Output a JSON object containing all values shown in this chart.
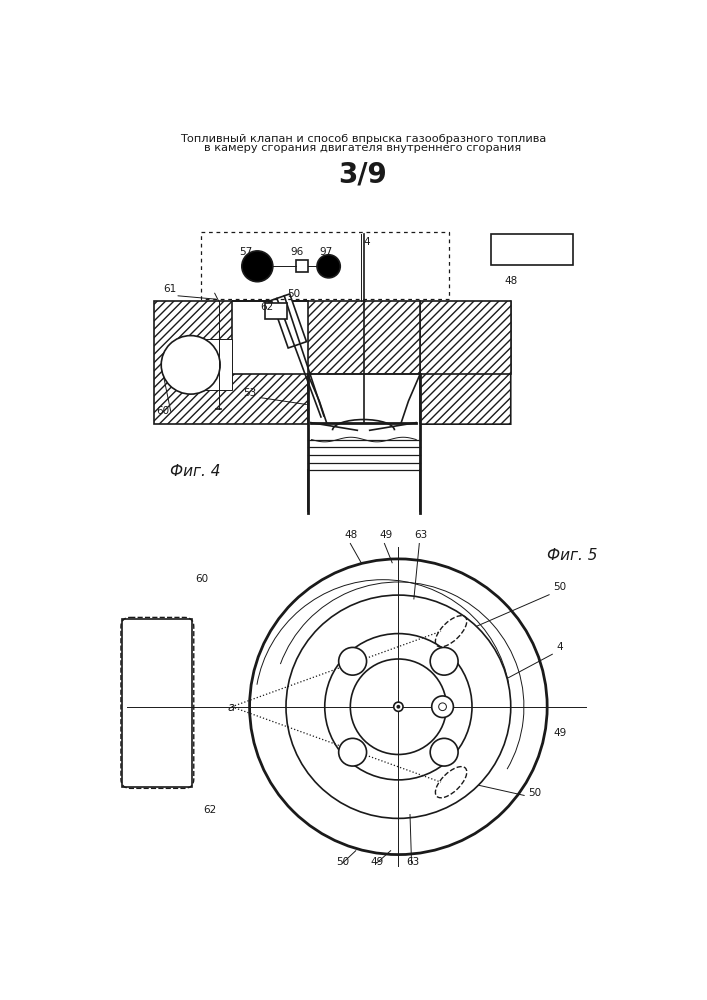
{
  "title_line1": "Топливный клапан и способ впрыска газообразного топлива",
  "title_line2": "в камеру сгорания двигателя внутреннего сгорания",
  "page_label": "3/9",
  "fig4_label": "Фиг. 4",
  "fig5_label": "Фиг. 5",
  "bg_color": "#ffffff",
  "line_color": "#1a1a1a"
}
